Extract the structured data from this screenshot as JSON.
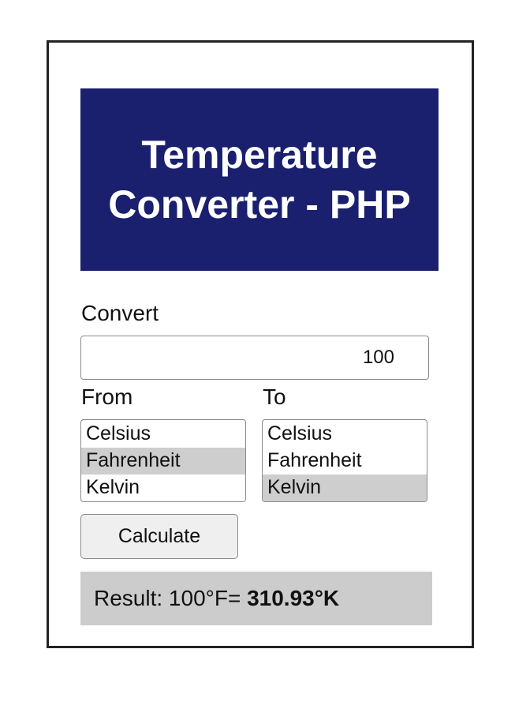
{
  "header": {
    "title": "Temperature Converter - PHP"
  },
  "form": {
    "convert_label": "Convert",
    "value": "100",
    "from_label": "From",
    "to_label": "To",
    "from_options": [
      "Celsius",
      "Fahrenheit",
      "Kelvin"
    ],
    "from_selected": "Fahrenheit",
    "to_options": [
      "Celsius",
      "Fahrenheit",
      "Kelvin"
    ],
    "to_selected": "Kelvin",
    "calculate_label": "Calculate"
  },
  "result": {
    "prefix": "Result: 100°F= ",
    "value": "310.93°K"
  },
  "colors": {
    "header_bg": "#1a1f6e",
    "selected_option_bg": "#cecece",
    "result_bg": "#cccccc"
  }
}
